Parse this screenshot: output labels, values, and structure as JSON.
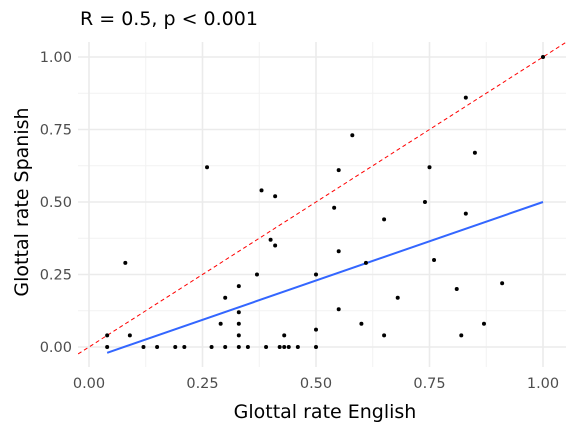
{
  "chart_data": {
    "type": "scatter",
    "title": "R = 0.5, p < 0.001",
    "xlabel": "Glottal rate English",
    "ylabel": "Glottal rate Spanish",
    "xlim": [
      0.0,
      1.0
    ],
    "ylim": [
      0.0,
      1.0
    ],
    "x_ticks": [
      "0.00",
      "0.25",
      "0.50",
      "0.75",
      "1.00"
    ],
    "y_ticks": [
      "0.00",
      "0.25",
      "0.50",
      "0.75",
      "1.00"
    ],
    "grid": true,
    "legend": "none",
    "points": [
      {
        "x": 0.04,
        "y": 0.04
      },
      {
        "x": 0.04,
        "y": 0.0
      },
      {
        "x": 0.08,
        "y": 0.29
      },
      {
        "x": 0.09,
        "y": 0.04
      },
      {
        "x": 0.12,
        "y": 0.0
      },
      {
        "x": 0.15,
        "y": 0.0
      },
      {
        "x": 0.19,
        "y": 0.0
      },
      {
        "x": 0.21,
        "y": 0.0
      },
      {
        "x": 0.26,
        "y": 0.62
      },
      {
        "x": 0.27,
        "y": 0.0
      },
      {
        "x": 0.29,
        "y": 0.08
      },
      {
        "x": 0.3,
        "y": 0.17
      },
      {
        "x": 0.3,
        "y": 0.0
      },
      {
        "x": 0.33,
        "y": 0.21
      },
      {
        "x": 0.33,
        "y": 0.12
      },
      {
        "x": 0.33,
        "y": 0.08
      },
      {
        "x": 0.33,
        "y": 0.04
      },
      {
        "x": 0.33,
        "y": 0.0
      },
      {
        "x": 0.35,
        "y": 0.0
      },
      {
        "x": 0.37,
        "y": 0.25
      },
      {
        "x": 0.38,
        "y": 0.54
      },
      {
        "x": 0.39,
        "y": 0.0
      },
      {
        "x": 0.4,
        "y": 0.37
      },
      {
        "x": 0.41,
        "y": 0.35
      },
      {
        "x": 0.41,
        "y": 0.52
      },
      {
        "x": 0.42,
        "y": 0.0
      },
      {
        "x": 0.43,
        "y": 0.0
      },
      {
        "x": 0.43,
        "y": 0.04
      },
      {
        "x": 0.44,
        "y": 0.0
      },
      {
        "x": 0.46,
        "y": 0.0
      },
      {
        "x": 0.5,
        "y": 0.25
      },
      {
        "x": 0.5,
        "y": 0.06
      },
      {
        "x": 0.5,
        "y": 0.0
      },
      {
        "x": 0.54,
        "y": 0.48
      },
      {
        "x": 0.55,
        "y": 0.61
      },
      {
        "x": 0.55,
        "y": 0.33
      },
      {
        "x": 0.55,
        "y": 0.13
      },
      {
        "x": 0.58,
        "y": 0.73
      },
      {
        "x": 0.6,
        "y": 0.08
      },
      {
        "x": 0.61,
        "y": 0.29
      },
      {
        "x": 0.65,
        "y": 0.44
      },
      {
        "x": 0.65,
        "y": 0.04
      },
      {
        "x": 0.68,
        "y": 0.17
      },
      {
        "x": 0.74,
        "y": 0.5
      },
      {
        "x": 0.75,
        "y": 0.62
      },
      {
        "x": 0.76,
        "y": 0.3
      },
      {
        "x": 0.81,
        "y": 0.2
      },
      {
        "x": 0.82,
        "y": 0.04
      },
      {
        "x": 0.83,
        "y": 0.86
      },
      {
        "x": 0.83,
        "y": 0.46
      },
      {
        "x": 0.85,
        "y": 0.67
      },
      {
        "x": 0.87,
        "y": 0.08
      },
      {
        "x": 0.91,
        "y": 0.22
      },
      {
        "x": 1.0,
        "y": 1.0
      }
    ],
    "reference_line": {
      "style": "dashed",
      "color": "#ff0000",
      "slope": 1,
      "intercept": 0
    },
    "fit_line": {
      "color": "#3366ff",
      "x": [
        0.04,
        1.0
      ],
      "y": [
        -0.02,
        0.5
      ]
    }
  }
}
